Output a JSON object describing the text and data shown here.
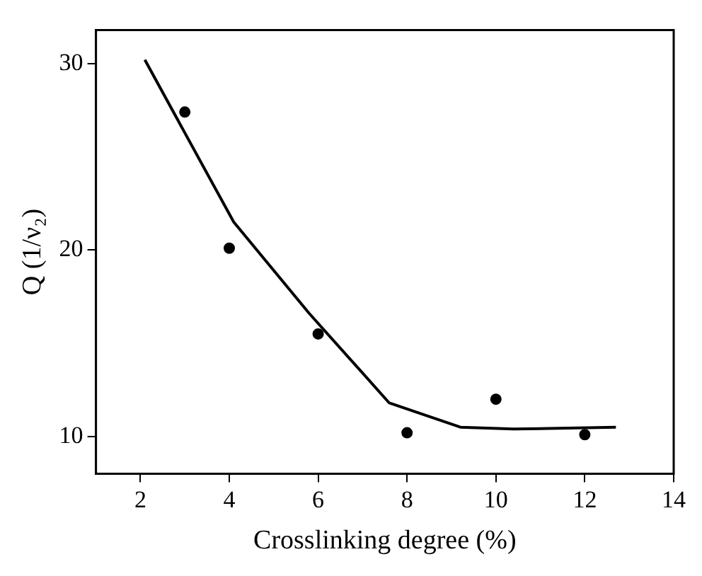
{
  "chart_data": {
    "type": "scatter",
    "xlabel": "Crosslinking degree (%)",
    "ylabel": "Q (1/ν₂)",
    "xlim": [
      1,
      14
    ],
    "xticks": [
      2,
      4,
      6,
      8,
      10,
      12,
      14
    ],
    "ylim": [
      8,
      31.8
    ],
    "yticks": [
      10,
      20,
      30
    ],
    "grid": false,
    "marker": "circle",
    "series": [
      {
        "color": "#000000",
        "x": [
          3,
          4,
          6,
          8,
          10,
          12
        ],
        "values": [
          27.4,
          20.1,
          15.5,
          10.2,
          12.0,
          10.1
        ]
      },
      {
        "type": "line",
        "color": "#000000",
        "marker": "none",
        "x": [
          2.1,
          4.1,
          5.8,
          7.6,
          9.2,
          10.4,
          12.7
        ],
        "values": [
          30.2,
          21.5,
          16.6,
          11.8,
          10.5,
          10.4,
          10.5
        ]
      }
    ]
  }
}
